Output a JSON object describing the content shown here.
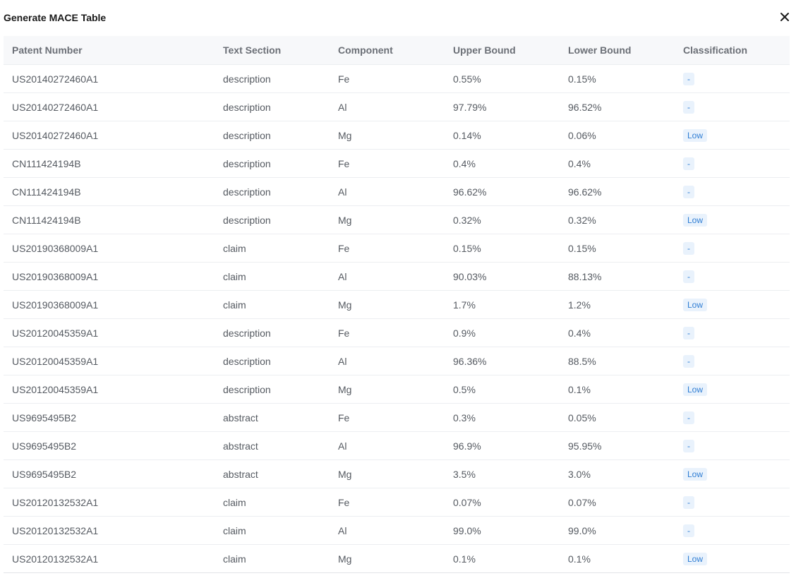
{
  "dialog": {
    "title": "Generate MACE Table",
    "close_icon": "close-icon"
  },
  "table": {
    "columns": [
      "Patent Number",
      "Text Section",
      "Component",
      "Upper Bound",
      "Lower Bound",
      "Classification"
    ],
    "rows": [
      {
        "patent": "US20140272460A1",
        "section": "description",
        "component": "Fe",
        "upper": "0.55%",
        "lower": "0.15%",
        "classification": "-"
      },
      {
        "patent": "US20140272460A1",
        "section": "description",
        "component": "Al",
        "upper": "97.79%",
        "lower": "96.52%",
        "classification": "-"
      },
      {
        "patent": "US20140272460A1",
        "section": "description",
        "component": "Mg",
        "upper": "0.14%",
        "lower": "0.06%",
        "classification": "Low"
      },
      {
        "patent": "CN111424194B",
        "section": "description",
        "component": "Fe",
        "upper": "0.4%",
        "lower": "0.4%",
        "classification": "-"
      },
      {
        "patent": "CN111424194B",
        "section": "description",
        "component": "Al",
        "upper": "96.62%",
        "lower": "96.62%",
        "classification": "-"
      },
      {
        "patent": "CN111424194B",
        "section": "description",
        "component": "Mg",
        "upper": "0.32%",
        "lower": "0.32%",
        "classification": "Low"
      },
      {
        "patent": "US20190368009A1",
        "section": "claim",
        "component": "Fe",
        "upper": "0.15%",
        "lower": "0.15%",
        "classification": "-"
      },
      {
        "patent": "US20190368009A1",
        "section": "claim",
        "component": "Al",
        "upper": "90.03%",
        "lower": "88.13%",
        "classification": "-"
      },
      {
        "patent": "US20190368009A1",
        "section": "claim",
        "component": "Mg",
        "upper": "1.7%",
        "lower": "1.2%",
        "classification": "Low"
      },
      {
        "patent": "US20120045359A1",
        "section": "description",
        "component": "Fe",
        "upper": "0.9%",
        "lower": "0.4%",
        "classification": "-"
      },
      {
        "patent": "US20120045359A1",
        "section": "description",
        "component": "Al",
        "upper": "96.36%",
        "lower": "88.5%",
        "classification": "-"
      },
      {
        "patent": "US20120045359A1",
        "section": "description",
        "component": "Mg",
        "upper": "0.5%",
        "lower": "0.1%",
        "classification": "Low"
      },
      {
        "patent": "US9695495B2",
        "section": "abstract",
        "component": "Fe",
        "upper": "0.3%",
        "lower": "0.05%",
        "classification": "-"
      },
      {
        "patent": "US9695495B2",
        "section": "abstract",
        "component": "Al",
        "upper": "96.9%",
        "lower": "95.95%",
        "classification": "-"
      },
      {
        "patent": "US9695495B2",
        "section": "abstract",
        "component": "Mg",
        "upper": "3.5%",
        "lower": "3.0%",
        "classification": "Low"
      },
      {
        "patent": "US20120132532A1",
        "section": "claim",
        "component": "Fe",
        "upper": "0.07%",
        "lower": "0.07%",
        "classification": "-"
      },
      {
        "patent": "US20120132532A1",
        "section": "claim",
        "component": "Al",
        "upper": "99.0%",
        "lower": "99.0%",
        "classification": "-"
      },
      {
        "patent": "US20120132532A1",
        "section": "claim",
        "component": "Mg",
        "upper": "0.1%",
        "lower": "0.1%",
        "classification": "Low"
      }
    ]
  },
  "colors": {
    "badge_bg": "#e9f2fc",
    "badge_text": "#2f7dd3",
    "header_bg": "#f7f8fa"
  }
}
